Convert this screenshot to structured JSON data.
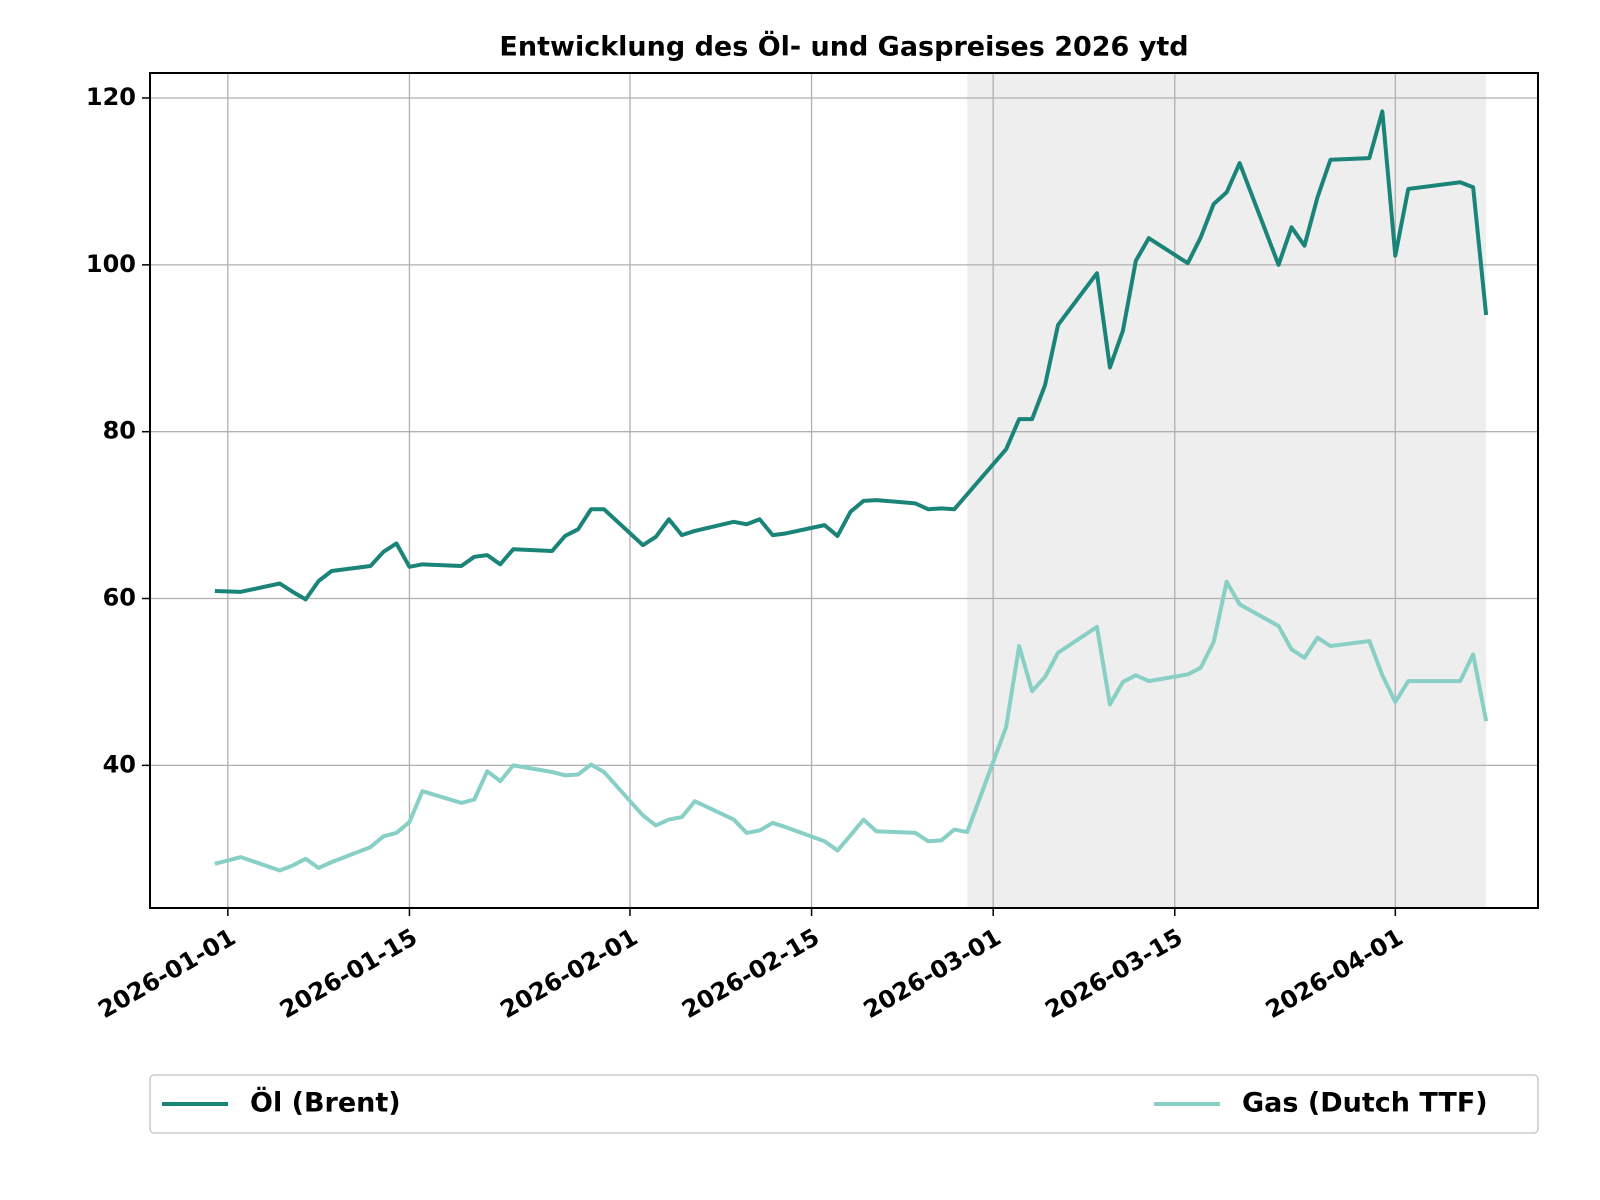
{
  "chart_data": {
    "type": "line",
    "title": "Entwicklung des Öl- und Gaspreises 2026 ytd",
    "x": [
      "2025-12-31",
      "2026-01-02",
      "2026-01-05",
      "2026-01-06",
      "2026-01-07",
      "2026-01-08",
      "2026-01-09",
      "2026-01-12",
      "2026-01-13",
      "2026-01-14",
      "2026-01-15",
      "2026-01-16",
      "2026-01-19",
      "2026-01-20",
      "2026-01-21",
      "2026-01-22",
      "2026-01-23",
      "2026-01-26",
      "2026-01-27",
      "2026-01-28",
      "2026-01-29",
      "2026-01-30",
      "2026-02-02",
      "2026-02-03",
      "2026-02-04",
      "2026-02-05",
      "2026-02-06",
      "2026-02-09",
      "2026-02-10",
      "2026-02-11",
      "2026-02-12",
      "2026-02-13",
      "2026-02-16",
      "2026-02-17",
      "2026-02-18",
      "2026-02-19",
      "2026-02-20",
      "2026-02-23",
      "2026-02-24",
      "2026-02-25",
      "2026-02-26",
      "2026-02-27",
      "2026-03-02",
      "2026-03-03",
      "2026-03-04",
      "2026-03-05",
      "2026-03-06",
      "2026-03-09",
      "2026-03-10",
      "2026-03-11",
      "2026-03-12",
      "2026-03-13",
      "2026-03-16",
      "2026-03-17",
      "2026-03-18",
      "2026-03-19",
      "2026-03-20",
      "2026-03-23",
      "2026-03-24",
      "2026-03-25",
      "2026-03-26",
      "2026-03-27",
      "2026-03-30",
      "2026-03-31",
      "2026-04-01",
      "2026-04-02",
      "2026-04-06",
      "2026-04-07",
      "2026-04-08"
    ],
    "series": [
      {
        "name": "Öl (Brent)",
        "color": "#1a8479",
        "values": [
          60.9,
          60.8,
          61.8,
          60.8,
          59.9,
          62.1,
          63.3,
          63.9,
          65.6,
          66.6,
          63.8,
          64.1,
          63.9,
          65.0,
          65.2,
          64.1,
          65.9,
          65.7,
          67.5,
          68.3,
          70.7,
          70.7,
          66.4,
          67.4,
          69.5,
          67.6,
          68.1,
          69.2,
          68.9,
          69.5,
          67.6,
          67.8,
          68.8,
          67.5,
          70.4,
          71.7,
          71.8,
          71.4,
          70.7,
          70.8,
          70.7,
          72.5,
          77.9,
          81.5,
          81.5,
          85.6,
          92.8,
          99.0,
          87.7,
          92.1,
          100.5,
          103.2,
          100.2,
          103.3,
          107.3,
          108.7,
          112.2,
          100.0,
          104.5,
          102.3,
          108.1,
          112.6,
          112.8,
          118.4,
          101.1,
          109.1,
          109.9,
          109.3,
          94.0
        ]
      },
      {
        "name": "Gas (Dutch TTF)",
        "color": "#88cfc5",
        "values": [
          28.2,
          29.0,
          27.4,
          28.0,
          28.8,
          27.7,
          28.4,
          30.2,
          31.5,
          31.9,
          33.2,
          36.9,
          35.5,
          35.9,
          39.3,
          38.1,
          40.0,
          39.2,
          38.8,
          38.9,
          40.1,
          39.2,
          34.0,
          32.8,
          33.5,
          33.8,
          35.7,
          33.5,
          31.9,
          32.2,
          33.1,
          32.6,
          30.9,
          29.8,
          31.6,
          33.5,
          32.1,
          31.9,
          30.9,
          31.0,
          32.3,
          32.0,
          44.6,
          54.3,
          48.9,
          50.6,
          53.5,
          56.6,
          47.3,
          50.0,
          50.8,
          50.1,
          50.9,
          51.7,
          54.8,
          62.0,
          59.3,
          56.7,
          53.9,
          52.9,
          55.3,
          54.3,
          54.9,
          50.8,
          47.6,
          50.1,
          50.1,
          53.3,
          45.3
        ]
      }
    ],
    "xlim": [
      "2025-12-26",
      "2026-04-12"
    ],
    "xticks": [
      "2026-01-01",
      "2026-01-15",
      "2026-02-01",
      "2026-02-15",
      "2026-03-01",
      "2026-03-15",
      "2026-04-01"
    ],
    "ylim": [
      22.9,
      123.0
    ],
    "yticks": [
      40,
      60,
      80,
      100,
      120
    ],
    "grid": true,
    "highlight": {
      "start": "2026-02-27",
      "end": "2026-04-08",
      "color": "#eeeeee"
    },
    "legend": "bottom"
  }
}
